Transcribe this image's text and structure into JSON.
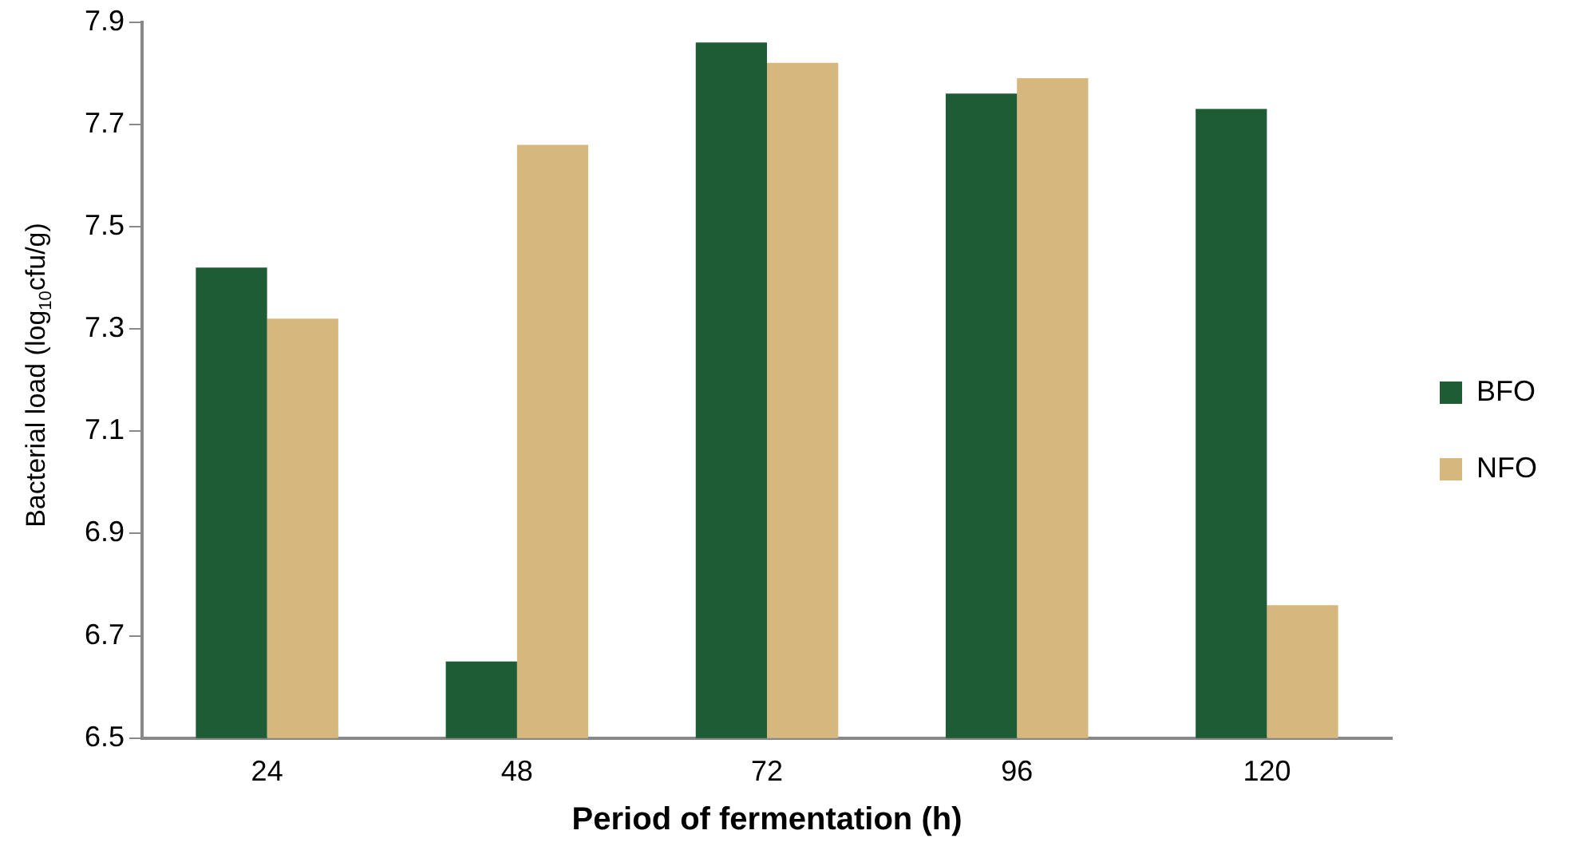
{
  "chart_data": {
    "type": "bar",
    "xlabel": "Period of fermentation (h)",
    "ylabel": "Bacterial load (log$_{10}$cfu/g)",
    "categories": [
      "24",
      "48",
      "72",
      "96",
      "120"
    ],
    "series": [
      {
        "name": "BFO",
        "color": "#1d5c35",
        "values": [
          7.42,
          6.65,
          7.86,
          7.76,
          7.73
        ]
      },
      {
        "name": "NFO",
        "color": "#d6b77e",
        "values": [
          7.32,
          7.66,
          7.82,
          7.79,
          6.76
        ]
      }
    ],
    "ylim": [
      6.5,
      7.9
    ],
    "yticks": [
      6.5,
      6.7,
      6.9,
      7.1,
      7.3,
      7.5,
      7.7,
      7.9
    ],
    "grid": false,
    "legend": "right"
  }
}
